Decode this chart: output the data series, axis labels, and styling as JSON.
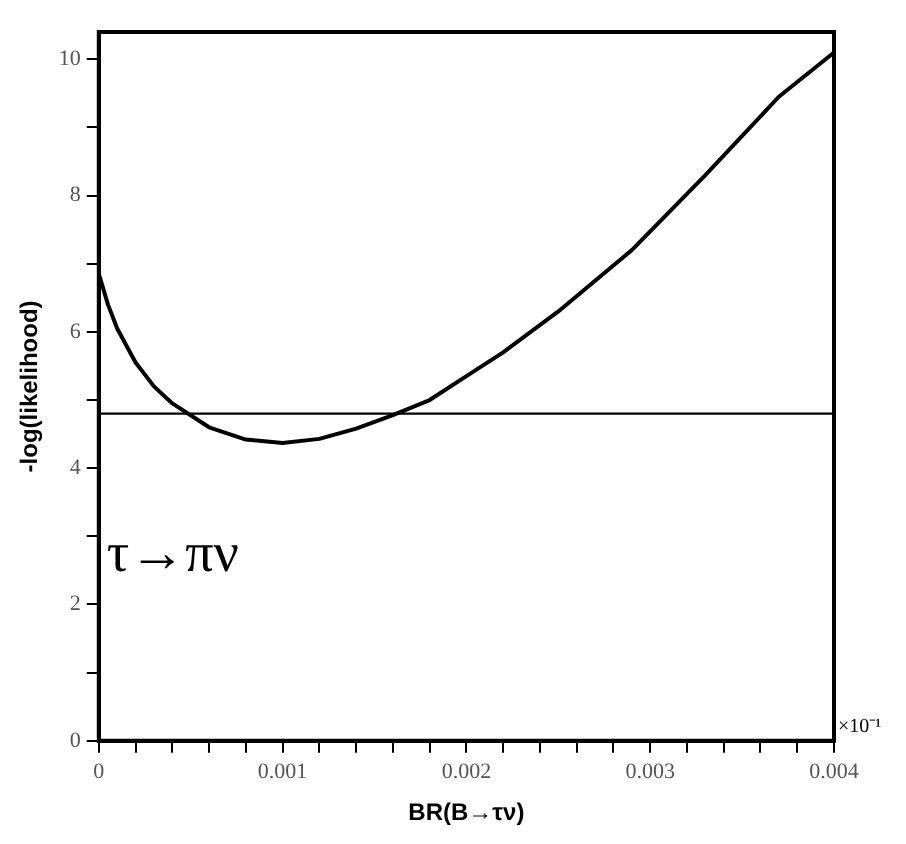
{
  "chart_data": {
    "type": "line",
    "xlabel": "BR(B→τν)",
    "ylabel": "-log(likelihood)",
    "x": [
      0,
      5e-05,
      0.0001,
      0.0002,
      0.0003,
      0.0004,
      0.0006,
      0.0008,
      0.001,
      0.0012,
      0.0014,
      0.0016,
      0.0018,
      0.002,
      0.0022,
      0.0025,
      0.0029,
      0.0033,
      0.0037,
      0.004
    ],
    "series": [
      {
        "color": "#000000",
        "values": [
          6.85,
          6.4,
          6.05,
          5.55,
          5.2,
          4.95,
          4.6,
          4.42,
          4.37,
          4.43,
          4.58,
          4.78,
          5.0,
          5.35,
          5.7,
          6.3,
          7.2,
          8.3,
          9.45,
          10.1
        ]
      }
    ],
    "xlim": [
      0,
      0.004
    ],
    "ylim": [
      0,
      10.4
    ],
    "xticks": [
      0,
      {
        "value": 0.0002,
        "label": null
      },
      {
        "value": 0.0004,
        "label": null
      },
      {
        "value": 0.0006,
        "label": null
      },
      {
        "value": 0.0008,
        "label": null
      },
      0.001,
      {
        "value": 0.0012,
        "label": null
      },
      {
        "value": 0.0014,
        "label": null
      },
      {
        "value": 0.0016,
        "label": null
      },
      {
        "value": 0.0018,
        "label": null
      },
      0.002,
      {
        "value": 0.0022,
        "label": null
      },
      {
        "value": 0.0024,
        "label": null
      },
      {
        "value": 0.0026,
        "label": null
      },
      {
        "value": 0.0028,
        "label": null
      },
      0.003,
      {
        "value": 0.0032,
        "label": null
      },
      {
        "value": 0.0034,
        "label": null
      },
      {
        "value": 0.0036,
        "label": null
      },
      {
        "value": 0.0038,
        "label": null
      },
      0.004
    ],
    "yticks": [
      0,
      {
        "value": 1,
        "label": null
      },
      2,
      {
        "value": 3,
        "label": null
      },
      4,
      {
        "value": 5,
        "label": null
      },
      6,
      {
        "value": 7,
        "label": null
      },
      8,
      {
        "value": 9,
        "label": null
      },
      10
    ],
    "ref_lines": [
      {
        "axis": "y",
        "value": 4.8
      }
    ],
    "annotations": [
      "τ→πν",
      "×10⁻¹"
    ],
    "grid": false,
    "legend": false,
    "marker": "none",
    "line_style": "solid"
  }
}
